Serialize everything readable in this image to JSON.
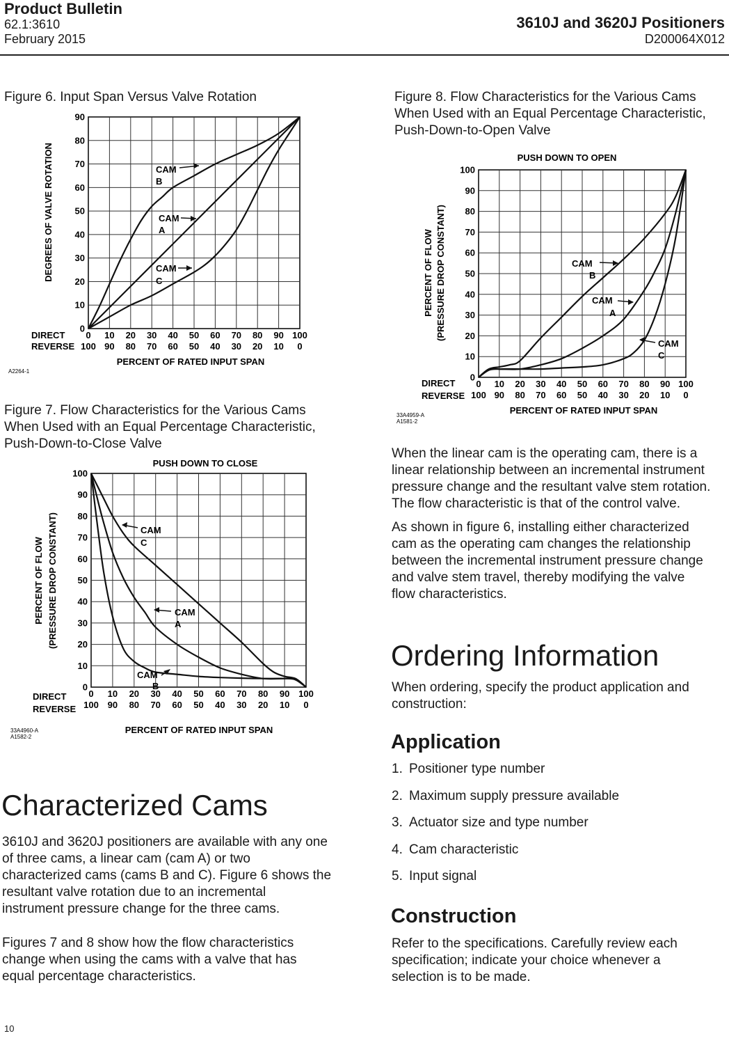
{
  "header": {
    "left_title": "Product Bulletin",
    "left_line2": "62.1:3610",
    "left_line3": "February 2015",
    "right_title": "3610J and 3620J Positioners",
    "right_line2": "D200064X012"
  },
  "figure6": {
    "caption": "Figure 6. Input Span Versus Valve Rotation",
    "code": "A2264-1"
  },
  "figure7": {
    "caption_l1": "Figure 7. Flow Characteristics for the Various Cams",
    "caption_l2": "When Used with an Equal Percentage Characteristic,",
    "caption_l3": "Push-Down-to-Close Valve",
    "code_l1": "33A4960-A",
    "code_l2": "A1582-2"
  },
  "figure8": {
    "caption_l1": "Figure 8. Flow Characteristics for the Various Cams",
    "caption_l2": "When Used with an Equal Percentage Characteristic,",
    "caption_l3": "Push-Down-to-Open Valve",
    "code_l1": "33A4959-A",
    "code_l2": "A1581-2"
  },
  "chart_data": [
    {
      "type": "line",
      "title": "",
      "ylabel": "DEGREES OF VALVE ROTATION",
      "xlabel": "PERCENT OF RATED INPUT SPAN",
      "row_labels": [
        "DIRECT",
        "REVERSE"
      ],
      "x_ticks_direct": [
        "0",
        "10",
        "20",
        "30",
        "40",
        "50",
        "60",
        "70",
        "80",
        "90",
        "100"
      ],
      "x_ticks_reverse": [
        "100",
        "90",
        "80",
        "70",
        "60",
        "50",
        "40",
        "30",
        "20",
        "10",
        "0"
      ],
      "y_ticks": [
        "0",
        "10",
        "20",
        "30",
        "40",
        "50",
        "60",
        "70",
        "80",
        "90"
      ],
      "xlim": [
        0,
        100
      ],
      "ylim": [
        0,
        90
      ],
      "grid": true,
      "series": [
        {
          "name": "CAM B",
          "x": [
            0,
            5,
            10,
            15,
            20,
            25,
            30,
            35,
            40,
            50,
            60,
            70,
            80,
            90,
            100
          ],
          "y": [
            0,
            9,
            19,
            29,
            38,
            46,
            52,
            56,
            60,
            65,
            70,
            74,
            78,
            83,
            90
          ]
        },
        {
          "name": "CAM A",
          "x": [
            0,
            100
          ],
          "y": [
            0,
            90
          ]
        },
        {
          "name": "CAM C",
          "x": [
            0,
            10,
            20,
            30,
            40,
            50,
            55,
            60,
            65,
            70,
            75,
            80,
            85,
            90,
            95,
            100
          ],
          "y": [
            0,
            5,
            10,
            14,
            19,
            24,
            27,
            31,
            36,
            42,
            50,
            59,
            68,
            76,
            83,
            90
          ]
        }
      ],
      "annotations": [
        {
          "line1": "CAM",
          "line2": "B"
        },
        {
          "line1": "CAM",
          "line2": "A"
        },
        {
          "line1": "CAM",
          "line2": "C"
        }
      ]
    },
    {
      "type": "line",
      "title": "PUSH DOWN TO CLOSE",
      "ylabel_l1": "PERCENT OF FLOW",
      "ylabel_l2": "(PRESSURE DROP CONSTANT)",
      "xlabel": "PERCENT OF RATED INPUT SPAN",
      "row_labels": [
        "DIRECT",
        "REVERSE"
      ],
      "x_ticks_direct": [
        "0",
        "10",
        "20",
        "30",
        "40",
        "50",
        "60",
        "70",
        "80",
        "90",
        "100"
      ],
      "x_ticks_reverse": [
        "100",
        "90",
        "80",
        "70",
        "60",
        "50",
        "40",
        "30",
        "20",
        "10",
        "0"
      ],
      "y_ticks": [
        "0",
        "10",
        "20",
        "30",
        "40",
        "50",
        "60",
        "70",
        "80",
        "90",
        "100"
      ],
      "xlim": [
        0,
        100
      ],
      "ylim": [
        0,
        100
      ],
      "grid": true,
      "series": [
        {
          "name": "CAM C",
          "x": [
            0,
            5,
            10,
            15,
            20,
            30,
            40,
            50,
            60,
            70,
            80,
            85,
            90,
            95,
            100
          ],
          "y": [
            100,
            90,
            80,
            72,
            66,
            57,
            48,
            39,
            30,
            21,
            11,
            7,
            5,
            4,
            0
          ]
        },
        {
          "name": "CAM A",
          "x": [
            0,
            5,
            10,
            15,
            20,
            25,
            30,
            40,
            50,
            60,
            70,
            80,
            90,
            95,
            100
          ],
          "y": [
            100,
            80,
            63,
            51,
            42,
            35,
            28,
            20,
            14,
            9,
            6,
            4,
            4,
            4,
            0
          ]
        },
        {
          "name": "CAM B",
          "x": [
            0,
            3,
            6,
            10,
            15,
            20,
            25,
            30,
            40,
            50,
            60,
            70,
            80,
            90,
            95,
            100
          ],
          "y": [
            100,
            75,
            53,
            33,
            18,
            12,
            9,
            7,
            6,
            5,
            4.5,
            4.2,
            4,
            4,
            3.5,
            0
          ]
        }
      ],
      "annotations": [
        {
          "line1": "CAM",
          "line2": "C"
        },
        {
          "line1": "CAM",
          "line2": "A"
        },
        {
          "line1": "CAM",
          "line2": "B"
        }
      ]
    },
    {
      "type": "line",
      "title": "PUSH DOWN TO OPEN",
      "ylabel_l1": "PERCENT OF FLOW",
      "ylabel_l2": "(PRESSURE DROP CONSTANT)",
      "xlabel": "PERCENT OF RATED INPUT SPAN",
      "row_labels": [
        "DIRECT",
        "REVERSE"
      ],
      "x_ticks_direct": [
        "0",
        "10",
        "20",
        "30",
        "40",
        "50",
        "60",
        "70",
        "80",
        "90",
        "100"
      ],
      "x_ticks_reverse": [
        "100",
        "90",
        "80",
        "70",
        "60",
        "50",
        "40",
        "30",
        "20",
        "10",
        "0"
      ],
      "y_ticks": [
        "0",
        "10",
        "20",
        "30",
        "40",
        "50",
        "60",
        "70",
        "80",
        "90",
        "100"
      ],
      "xlim": [
        0,
        100
      ],
      "ylim": [
        0,
        100
      ],
      "grid": true,
      "series": [
        {
          "name": "CAM B",
          "x": [
            0,
            5,
            10,
            15,
            20,
            30,
            40,
            50,
            60,
            70,
            80,
            90,
            95,
            100
          ],
          "y": [
            0,
            4,
            5,
            6,
            8,
            19,
            29,
            39,
            48,
            57,
            67,
            79,
            87,
            100
          ]
        },
        {
          "name": "CAM A",
          "x": [
            0,
            5,
            10,
            20,
            30,
            40,
            50,
            60,
            70,
            80,
            85,
            90,
            95,
            100
          ],
          "y": [
            0,
            4,
            4,
            4,
            6,
            9,
            14,
            20,
            28,
            42,
            51,
            62,
            79,
            100
          ]
        },
        {
          "name": "CAM C",
          "x": [
            0,
            5,
            10,
            20,
            30,
            40,
            50,
            60,
            70,
            75,
            80,
            85,
            90,
            95,
            100
          ],
          "y": [
            0,
            3.5,
            4,
            4,
            4,
            4.5,
            5,
            6,
            9,
            12,
            18,
            29,
            45,
            67,
            100
          ]
        }
      ],
      "annotations": [
        {
          "line1": "CAM",
          "line2": "B"
        },
        {
          "line1": "CAM",
          "line2": "A"
        },
        {
          "line1": "CAM",
          "line2": "C"
        }
      ]
    }
  ],
  "left_section": {
    "heading": "Characterized Cams",
    "para1_l1": "3610J and 3620J positioners are available with any one",
    "para1_l2": "of three cams, a linear cam (cam A) or two",
    "para1_l3": "characterized cams (cams B and C). Figure 6 shows the",
    "para1_l4": "resultant valve rotation due to an incremental",
    "para1_l5": "instrument pressure change for the three cams.",
    "para2_l1": "Figures 7 and 8 show how the flow characteristics",
    "para2_l2": "change when using the cams with a valve that has",
    "para2_l3": "equal percentage characteristics."
  },
  "right_text": {
    "para1_l1": "When the linear cam is the operating cam, there is a",
    "para1_l2": "linear relationship between an incremental instrument",
    "para1_l3": "pressure change and the resultant valve stem rotation.",
    "para1_l4": "The flow characteristic is that of the control valve.",
    "para2_l1": "As shown in figure 6, installing either characterized",
    "para2_l2": "cam as the operating cam changes the relationship",
    "para2_l3": "between the incremental instrument pressure change",
    "para2_l4": "and valve stem travel, thereby modifying the valve",
    "para2_l5": "flow characteristics."
  },
  "ordering": {
    "heading": "Ordering Information",
    "intro_l1": "When ordering, specify the product application and",
    "intro_l2": "construction:",
    "application_heading": "Application",
    "application_items": [
      {
        "num": "1.",
        "text": "Positioner type number"
      },
      {
        "num": "2.",
        "text": "Maximum supply pressure available"
      },
      {
        "num": "3.",
        "text": "Actuator size and type number"
      },
      {
        "num": "4.",
        "text": "Cam characteristic"
      },
      {
        "num": "5.",
        "text": "Input signal"
      }
    ],
    "construction_heading": "Construction",
    "construction_l1": "Refer to the specifications. Carefully review each",
    "construction_l2": "specification; indicate your choice whenever a",
    "construction_l3": "selection is to be made."
  },
  "footer": {
    "page_number": "10"
  }
}
